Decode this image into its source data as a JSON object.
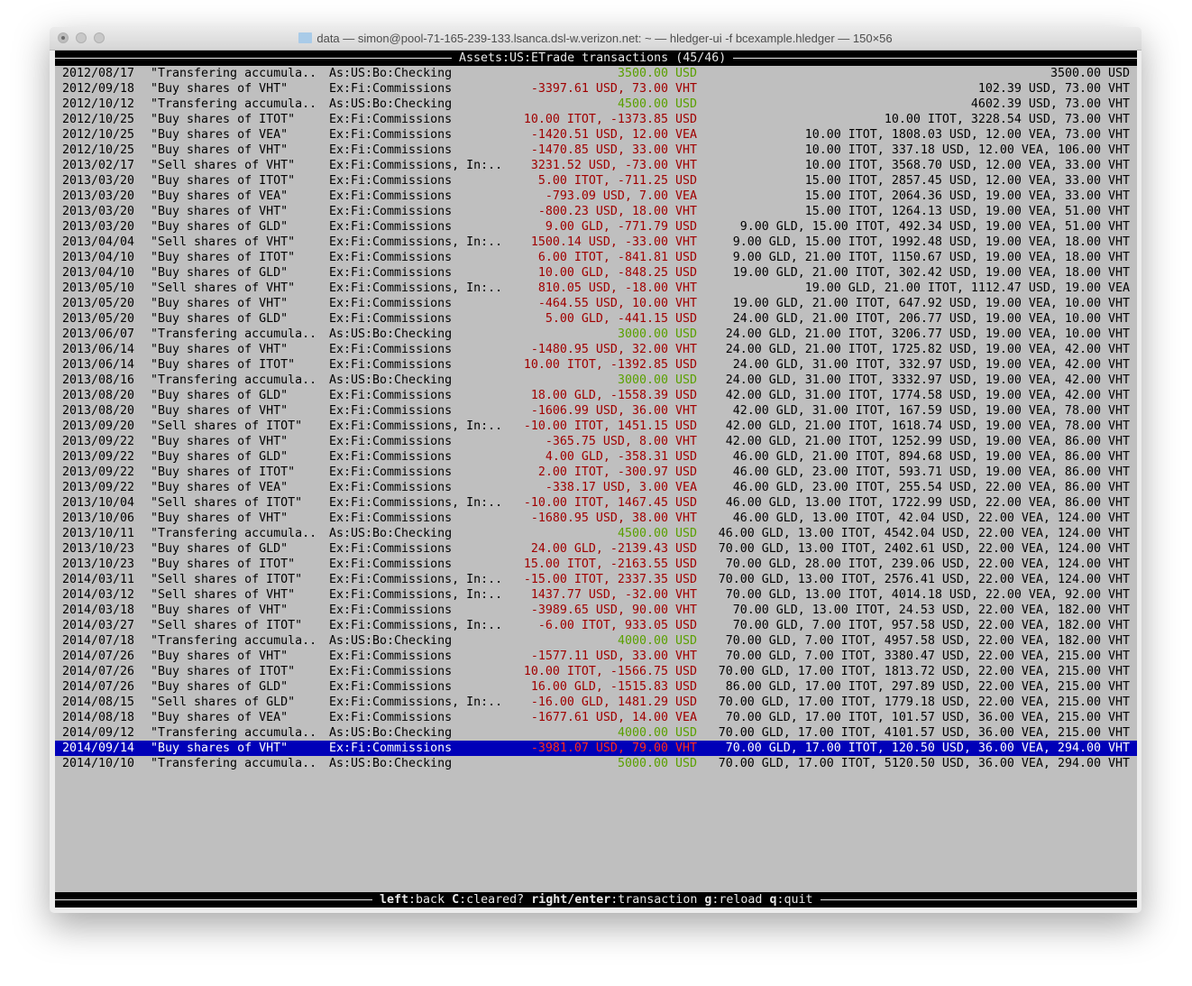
{
  "window": {
    "title": "data — simon@pool-71-165-239-133.lsanca.dsl-w.verizon.net: ~ — hledger-ui -f bcexample.hledger — 150×56"
  },
  "header": {
    "account": "Assets:US:ETrade",
    "label": "transactions",
    "position": "(45/46)"
  },
  "colors": {
    "negative": "#a00000",
    "positive": "#5aa000",
    "selected_bg": "#0000b8",
    "selected_negative": "#ff2a1a"
  },
  "rows": [
    {
      "date": "2012/08/17",
      "desc": "\"Transfering accumula..",
      "account": "As:US:Bo:Checking",
      "amount": "3500.00 USD",
      "color": "positive",
      "balance": "3500.00 USD"
    },
    {
      "date": "2012/09/18",
      "desc": "\"Buy shares of VHT\"",
      "account": "Ex:Fi:Commissions",
      "amount": "-3397.61 USD, 73.00 VHT",
      "color": "negative",
      "balance": "102.39 USD, 73.00 VHT"
    },
    {
      "date": "2012/10/12",
      "desc": "\"Transfering accumula..",
      "account": "As:US:Bo:Checking",
      "amount": "4500.00 USD",
      "color": "positive",
      "balance": "4602.39 USD, 73.00 VHT"
    },
    {
      "date": "2012/10/25",
      "desc": "\"Buy shares of ITOT\"",
      "account": "Ex:Fi:Commissions",
      "amount": "10.00 ITOT, -1373.85 USD",
      "color": "negative",
      "balance": "10.00 ITOT, 3228.54 USD, 73.00 VHT"
    },
    {
      "date": "2012/10/25",
      "desc": "\"Buy shares of VEA\"",
      "account": "Ex:Fi:Commissions",
      "amount": "-1420.51 USD, 12.00 VEA",
      "color": "negative",
      "balance": "10.00 ITOT, 1808.03 USD, 12.00 VEA, 73.00 VHT"
    },
    {
      "date": "2012/10/25",
      "desc": "\"Buy shares of VHT\"",
      "account": "Ex:Fi:Commissions",
      "amount": "-1470.85 USD, 33.00 VHT",
      "color": "negative",
      "balance": "10.00 ITOT, 337.18 USD, 12.00 VEA, 106.00 VHT"
    },
    {
      "date": "2013/02/17",
      "desc": "\"Sell shares of VHT\"",
      "account": "Ex:Fi:Commissions, In:..",
      "amount": "3231.52 USD, -73.00 VHT",
      "color": "negative",
      "balance": "10.00 ITOT, 3568.70 USD, 12.00 VEA, 33.00 VHT"
    },
    {
      "date": "2013/03/20",
      "desc": "\"Buy shares of ITOT\"",
      "account": "Ex:Fi:Commissions",
      "amount": "5.00 ITOT, -711.25 USD",
      "color": "negative",
      "balance": "15.00 ITOT, 2857.45 USD, 12.00 VEA, 33.00 VHT"
    },
    {
      "date": "2013/03/20",
      "desc": "\"Buy shares of VEA\"",
      "account": "Ex:Fi:Commissions",
      "amount": "-793.09 USD, 7.00 VEA",
      "color": "negative",
      "balance": "15.00 ITOT, 2064.36 USD, 19.00 VEA, 33.00 VHT"
    },
    {
      "date": "2013/03/20",
      "desc": "\"Buy shares of VHT\"",
      "account": "Ex:Fi:Commissions",
      "amount": "-800.23 USD, 18.00 VHT",
      "color": "negative",
      "balance": "15.00 ITOT, 1264.13 USD, 19.00 VEA, 51.00 VHT"
    },
    {
      "date": "2013/03/20",
      "desc": "\"Buy shares of GLD\"",
      "account": "Ex:Fi:Commissions",
      "amount": "9.00 GLD, -771.79 USD",
      "color": "negative",
      "balance": "9.00 GLD, 15.00 ITOT, 492.34 USD, 19.00 VEA, 51.00 VHT"
    },
    {
      "date": "2013/04/04",
      "desc": "\"Sell shares of VHT\"",
      "account": "Ex:Fi:Commissions, In:..",
      "amount": "1500.14 USD, -33.00 VHT",
      "color": "negative",
      "balance": "9.00 GLD, 15.00 ITOT, 1992.48 USD, 19.00 VEA, 18.00 VHT"
    },
    {
      "date": "2013/04/10",
      "desc": "\"Buy shares of ITOT\"",
      "account": "Ex:Fi:Commissions",
      "amount": "6.00 ITOT, -841.81 USD",
      "color": "negative",
      "balance": "9.00 GLD, 21.00 ITOT, 1150.67 USD, 19.00 VEA, 18.00 VHT"
    },
    {
      "date": "2013/04/10",
      "desc": "\"Buy shares of GLD\"",
      "account": "Ex:Fi:Commissions",
      "amount": "10.00 GLD, -848.25 USD",
      "color": "negative",
      "balance": "19.00 GLD, 21.00 ITOT, 302.42 USD, 19.00 VEA, 18.00 VHT"
    },
    {
      "date": "2013/05/10",
      "desc": "\"Sell shares of VHT\"",
      "account": "Ex:Fi:Commissions, In:..",
      "amount": "810.05 USD, -18.00 VHT",
      "color": "negative",
      "balance": "19.00 GLD, 21.00 ITOT, 1112.47 USD, 19.00 VEA"
    },
    {
      "date": "2013/05/20",
      "desc": "\"Buy shares of VHT\"",
      "account": "Ex:Fi:Commissions",
      "amount": "-464.55 USD, 10.00 VHT",
      "color": "negative",
      "balance": "19.00 GLD, 21.00 ITOT, 647.92 USD, 19.00 VEA, 10.00 VHT"
    },
    {
      "date": "2013/05/20",
      "desc": "\"Buy shares of GLD\"",
      "account": "Ex:Fi:Commissions",
      "amount": "5.00 GLD, -441.15 USD",
      "color": "negative",
      "balance": "24.00 GLD, 21.00 ITOT, 206.77 USD, 19.00 VEA, 10.00 VHT"
    },
    {
      "date": "2013/06/07",
      "desc": "\"Transfering accumula..",
      "account": "As:US:Bo:Checking",
      "amount": "3000.00 USD",
      "color": "positive",
      "balance": "24.00 GLD, 21.00 ITOT, 3206.77 USD, 19.00 VEA, 10.00 VHT"
    },
    {
      "date": "2013/06/14",
      "desc": "\"Buy shares of VHT\"",
      "account": "Ex:Fi:Commissions",
      "amount": "-1480.95 USD, 32.00 VHT",
      "color": "negative",
      "balance": "24.00 GLD, 21.00 ITOT, 1725.82 USD, 19.00 VEA, 42.00 VHT"
    },
    {
      "date": "2013/06/14",
      "desc": "\"Buy shares of ITOT\"",
      "account": "Ex:Fi:Commissions",
      "amount": "10.00 ITOT, -1392.85 USD",
      "color": "negative",
      "balance": "24.00 GLD, 31.00 ITOT, 332.97 USD, 19.00 VEA, 42.00 VHT"
    },
    {
      "date": "2013/08/16",
      "desc": "\"Transfering accumula..",
      "account": "As:US:Bo:Checking",
      "amount": "3000.00 USD",
      "color": "positive",
      "balance": "24.00 GLD, 31.00 ITOT, 3332.97 USD, 19.00 VEA, 42.00 VHT"
    },
    {
      "date": "2013/08/20",
      "desc": "\"Buy shares of GLD\"",
      "account": "Ex:Fi:Commissions",
      "amount": "18.00 GLD, -1558.39 USD",
      "color": "negative",
      "balance": "42.00 GLD, 31.00 ITOT, 1774.58 USD, 19.00 VEA, 42.00 VHT"
    },
    {
      "date": "2013/08/20",
      "desc": "\"Buy shares of VHT\"",
      "account": "Ex:Fi:Commissions",
      "amount": "-1606.99 USD, 36.00 VHT",
      "color": "negative",
      "balance": "42.00 GLD, 31.00 ITOT, 167.59 USD, 19.00 VEA, 78.00 VHT"
    },
    {
      "date": "2013/09/20",
      "desc": "\"Sell shares of ITOT\"",
      "account": "Ex:Fi:Commissions, In:..",
      "amount": "-10.00 ITOT, 1451.15 USD",
      "color": "negative",
      "balance": "42.00 GLD, 21.00 ITOT, 1618.74 USD, 19.00 VEA, 78.00 VHT"
    },
    {
      "date": "2013/09/22",
      "desc": "\"Buy shares of VHT\"",
      "account": "Ex:Fi:Commissions",
      "amount": "-365.75 USD, 8.00 VHT",
      "color": "negative",
      "balance": "42.00 GLD, 21.00 ITOT, 1252.99 USD, 19.00 VEA, 86.00 VHT"
    },
    {
      "date": "2013/09/22",
      "desc": "\"Buy shares of GLD\"",
      "account": "Ex:Fi:Commissions",
      "amount": "4.00 GLD, -358.31 USD",
      "color": "negative",
      "balance": "46.00 GLD, 21.00 ITOT, 894.68 USD, 19.00 VEA, 86.00 VHT"
    },
    {
      "date": "2013/09/22",
      "desc": "\"Buy shares of ITOT\"",
      "account": "Ex:Fi:Commissions",
      "amount": "2.00 ITOT, -300.97 USD",
      "color": "negative",
      "balance": "46.00 GLD, 23.00 ITOT, 593.71 USD, 19.00 VEA, 86.00 VHT"
    },
    {
      "date": "2013/09/22",
      "desc": "\"Buy shares of VEA\"",
      "account": "Ex:Fi:Commissions",
      "amount": "-338.17 USD, 3.00 VEA",
      "color": "negative",
      "balance": "46.00 GLD, 23.00 ITOT, 255.54 USD, 22.00 VEA, 86.00 VHT"
    },
    {
      "date": "2013/10/04",
      "desc": "\"Sell shares of ITOT\"",
      "account": "Ex:Fi:Commissions, In:..",
      "amount": "-10.00 ITOT, 1467.45 USD",
      "color": "negative",
      "balance": "46.00 GLD, 13.00 ITOT, 1722.99 USD, 22.00 VEA, 86.00 VHT"
    },
    {
      "date": "2013/10/06",
      "desc": "\"Buy shares of VHT\"",
      "account": "Ex:Fi:Commissions",
      "amount": "-1680.95 USD, 38.00 VHT",
      "color": "negative",
      "balance": "46.00 GLD, 13.00 ITOT, 42.04 USD, 22.00 VEA, 124.00 VHT"
    },
    {
      "date": "2013/10/11",
      "desc": "\"Transfering accumula..",
      "account": "As:US:Bo:Checking",
      "amount": "4500.00 USD",
      "color": "positive",
      "balance": "46.00 GLD, 13.00 ITOT, 4542.04 USD, 22.00 VEA, 124.00 VHT"
    },
    {
      "date": "2013/10/23",
      "desc": "\"Buy shares of GLD\"",
      "account": "Ex:Fi:Commissions",
      "amount": "24.00 GLD, -2139.43 USD",
      "color": "negative",
      "balance": "70.00 GLD, 13.00 ITOT, 2402.61 USD, 22.00 VEA, 124.00 VHT"
    },
    {
      "date": "2013/10/23",
      "desc": "\"Buy shares of ITOT\"",
      "account": "Ex:Fi:Commissions",
      "amount": "15.00 ITOT, -2163.55 USD",
      "color": "negative",
      "balance": "70.00 GLD, 28.00 ITOT, 239.06 USD, 22.00 VEA, 124.00 VHT"
    },
    {
      "date": "2014/03/11",
      "desc": "\"Sell shares of ITOT\"",
      "account": "Ex:Fi:Commissions, In:..",
      "amount": "-15.00 ITOT, 2337.35 USD",
      "color": "negative",
      "balance": "70.00 GLD, 13.00 ITOT, 2576.41 USD, 22.00 VEA, 124.00 VHT"
    },
    {
      "date": "2014/03/12",
      "desc": "\"Sell shares of VHT\"",
      "account": "Ex:Fi:Commissions, In:..",
      "amount": "1437.77 USD, -32.00 VHT",
      "color": "negative",
      "balance": "70.00 GLD, 13.00 ITOT, 4014.18 USD, 22.00 VEA, 92.00 VHT"
    },
    {
      "date": "2014/03/18",
      "desc": "\"Buy shares of VHT\"",
      "account": "Ex:Fi:Commissions",
      "amount": "-3989.65 USD, 90.00 VHT",
      "color": "negative",
      "balance": "70.00 GLD, 13.00 ITOT, 24.53 USD, 22.00 VEA, 182.00 VHT"
    },
    {
      "date": "2014/03/27",
      "desc": "\"Sell shares of ITOT\"",
      "account": "Ex:Fi:Commissions, In:..",
      "amount": "-6.00 ITOT, 933.05 USD",
      "color": "negative",
      "balance": "70.00 GLD, 7.00 ITOT, 957.58 USD, 22.00 VEA, 182.00 VHT"
    },
    {
      "date": "2014/07/18",
      "desc": "\"Transfering accumula..",
      "account": "As:US:Bo:Checking",
      "amount": "4000.00 USD",
      "color": "positive",
      "balance": "70.00 GLD, 7.00 ITOT, 4957.58 USD, 22.00 VEA, 182.00 VHT"
    },
    {
      "date": "2014/07/26",
      "desc": "\"Buy shares of VHT\"",
      "account": "Ex:Fi:Commissions",
      "amount": "-1577.11 USD, 33.00 VHT",
      "color": "negative",
      "balance": "70.00 GLD, 7.00 ITOT, 3380.47 USD, 22.00 VEA, 215.00 VHT"
    },
    {
      "date": "2014/07/26",
      "desc": "\"Buy shares of ITOT\"",
      "account": "Ex:Fi:Commissions",
      "amount": "10.00 ITOT, -1566.75 USD",
      "color": "negative",
      "balance": "70.00 GLD, 17.00 ITOT, 1813.72 USD, 22.00 VEA, 215.00 VHT"
    },
    {
      "date": "2014/07/26",
      "desc": "\"Buy shares of GLD\"",
      "account": "Ex:Fi:Commissions",
      "amount": "16.00 GLD, -1515.83 USD",
      "color": "negative",
      "balance": "86.00 GLD, 17.00 ITOT, 297.89 USD, 22.00 VEA, 215.00 VHT"
    },
    {
      "date": "2014/08/15",
      "desc": "\"Sell shares of GLD\"",
      "account": "Ex:Fi:Commissions, In:..",
      "amount": "-16.00 GLD, 1481.29 USD",
      "color": "negative",
      "balance": "70.00 GLD, 17.00 ITOT, 1779.18 USD, 22.00 VEA, 215.00 VHT"
    },
    {
      "date": "2014/08/18",
      "desc": "\"Buy shares of VEA\"",
      "account": "Ex:Fi:Commissions",
      "amount": "-1677.61 USD, 14.00 VEA",
      "color": "negative",
      "balance": "70.00 GLD, 17.00 ITOT, 101.57 USD, 36.00 VEA, 215.00 VHT"
    },
    {
      "date": "2014/09/12",
      "desc": "\"Transfering accumula..",
      "account": "As:US:Bo:Checking",
      "amount": "4000.00 USD",
      "color": "positive",
      "balance": "70.00 GLD, 17.00 ITOT, 4101.57 USD, 36.00 VEA, 215.00 VHT"
    },
    {
      "date": "2014/09/14",
      "desc": "\"Buy shares of VHT\"",
      "account": "Ex:Fi:Commissions",
      "amount": "-3981.07 USD, 79.00 VHT",
      "color": "negative",
      "balance": "70.00 GLD, 17.00 ITOT, 120.50 USD, 36.00 VEA, 294.00 VHT",
      "selected": true
    },
    {
      "date": "2014/10/10",
      "desc": "\"Transfering accumula..",
      "account": "As:US:Bo:Checking",
      "amount": "5000.00 USD",
      "color": "positive",
      "balance": "70.00 GLD, 17.00 ITOT, 5120.50 USD, 36.00 VEA, 294.00 VHT"
    }
  ],
  "footer": {
    "keys": [
      {
        "key": "left",
        "action": "back"
      },
      {
        "key": "C",
        "action": "cleared?"
      },
      {
        "key": "right/enter",
        "action": "transaction"
      },
      {
        "key": "g",
        "action": "reload"
      },
      {
        "key": "q",
        "action": "quit"
      }
    ]
  }
}
